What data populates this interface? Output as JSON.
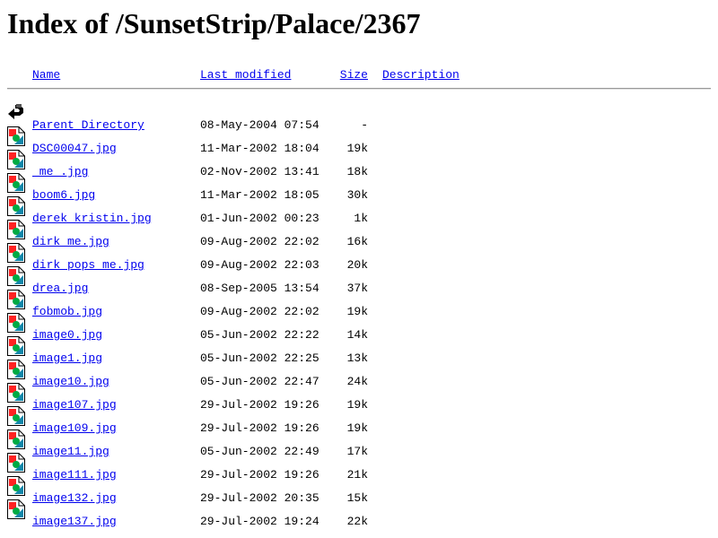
{
  "title": "Index of /SunsetStrip/Palace/2367",
  "columns": {
    "name": "Name",
    "modified": "Last modified",
    "size": "Size",
    "description": "Description"
  },
  "rows": [
    {
      "icon": "back-arrow-icon",
      "name": "Parent Directory",
      "modified": "08-May-2004 07:54",
      "size": "-"
    },
    {
      "icon": "image-file-icon",
      "name": "DSC00047.jpg",
      "modified": "11-Mar-2002 18:04",
      "size": "19k"
    },
    {
      "icon": "image-file-icon",
      "name": " me .jpg",
      "modified": "02-Nov-2002 13:41",
      "size": "18k"
    },
    {
      "icon": "image-file-icon",
      "name": "boom6.jpg",
      "modified": "11-Mar-2002 18:05",
      "size": "30k"
    },
    {
      "icon": "image-file-icon",
      "name": "derek kristin.jpg",
      "modified": "01-Jun-2002 00:23",
      "size": "1k"
    },
    {
      "icon": "image-file-icon",
      "name": "dirk me.jpg",
      "modified": "09-Aug-2002 22:02",
      "size": "16k"
    },
    {
      "icon": "image-file-icon",
      "name": "dirk pops me.jpg",
      "modified": "09-Aug-2002 22:03",
      "size": "20k"
    },
    {
      "icon": "image-file-icon",
      "name": "drea.jpg",
      "modified": "08-Sep-2005 13:54",
      "size": "37k"
    },
    {
      "icon": "image-file-icon",
      "name": "fobmob.jpg",
      "modified": "09-Aug-2002 22:02",
      "size": "19k"
    },
    {
      "icon": "image-file-icon",
      "name": "image0.jpg",
      "modified": "05-Jun-2002 22:22",
      "size": "14k"
    },
    {
      "icon": "image-file-icon",
      "name": "image1.jpg",
      "modified": "05-Jun-2002 22:25",
      "size": "13k"
    },
    {
      "icon": "image-file-icon",
      "name": "image10.jpg",
      "modified": "05-Jun-2002 22:47",
      "size": "24k"
    },
    {
      "icon": "image-file-icon",
      "name": "image107.jpg",
      "modified": "29-Jul-2002 19:26",
      "size": "19k"
    },
    {
      "icon": "image-file-icon",
      "name": "image109.jpg",
      "modified": "29-Jul-2002 19:26",
      "size": "19k"
    },
    {
      "icon": "image-file-icon",
      "name": "image11.jpg",
      "modified": "05-Jun-2002 22:49",
      "size": "17k"
    },
    {
      "icon": "image-file-icon",
      "name": "image111.jpg",
      "modified": "29-Jul-2002 19:26",
      "size": "21k"
    },
    {
      "icon": "image-file-icon",
      "name": "image132.jpg",
      "modified": "29-Jul-2002 20:35",
      "size": "15k"
    },
    {
      "icon": "image-file-icon",
      "name": "image137.jpg",
      "modified": "29-Jul-2002 19:24",
      "size": "22k"
    }
  ]
}
